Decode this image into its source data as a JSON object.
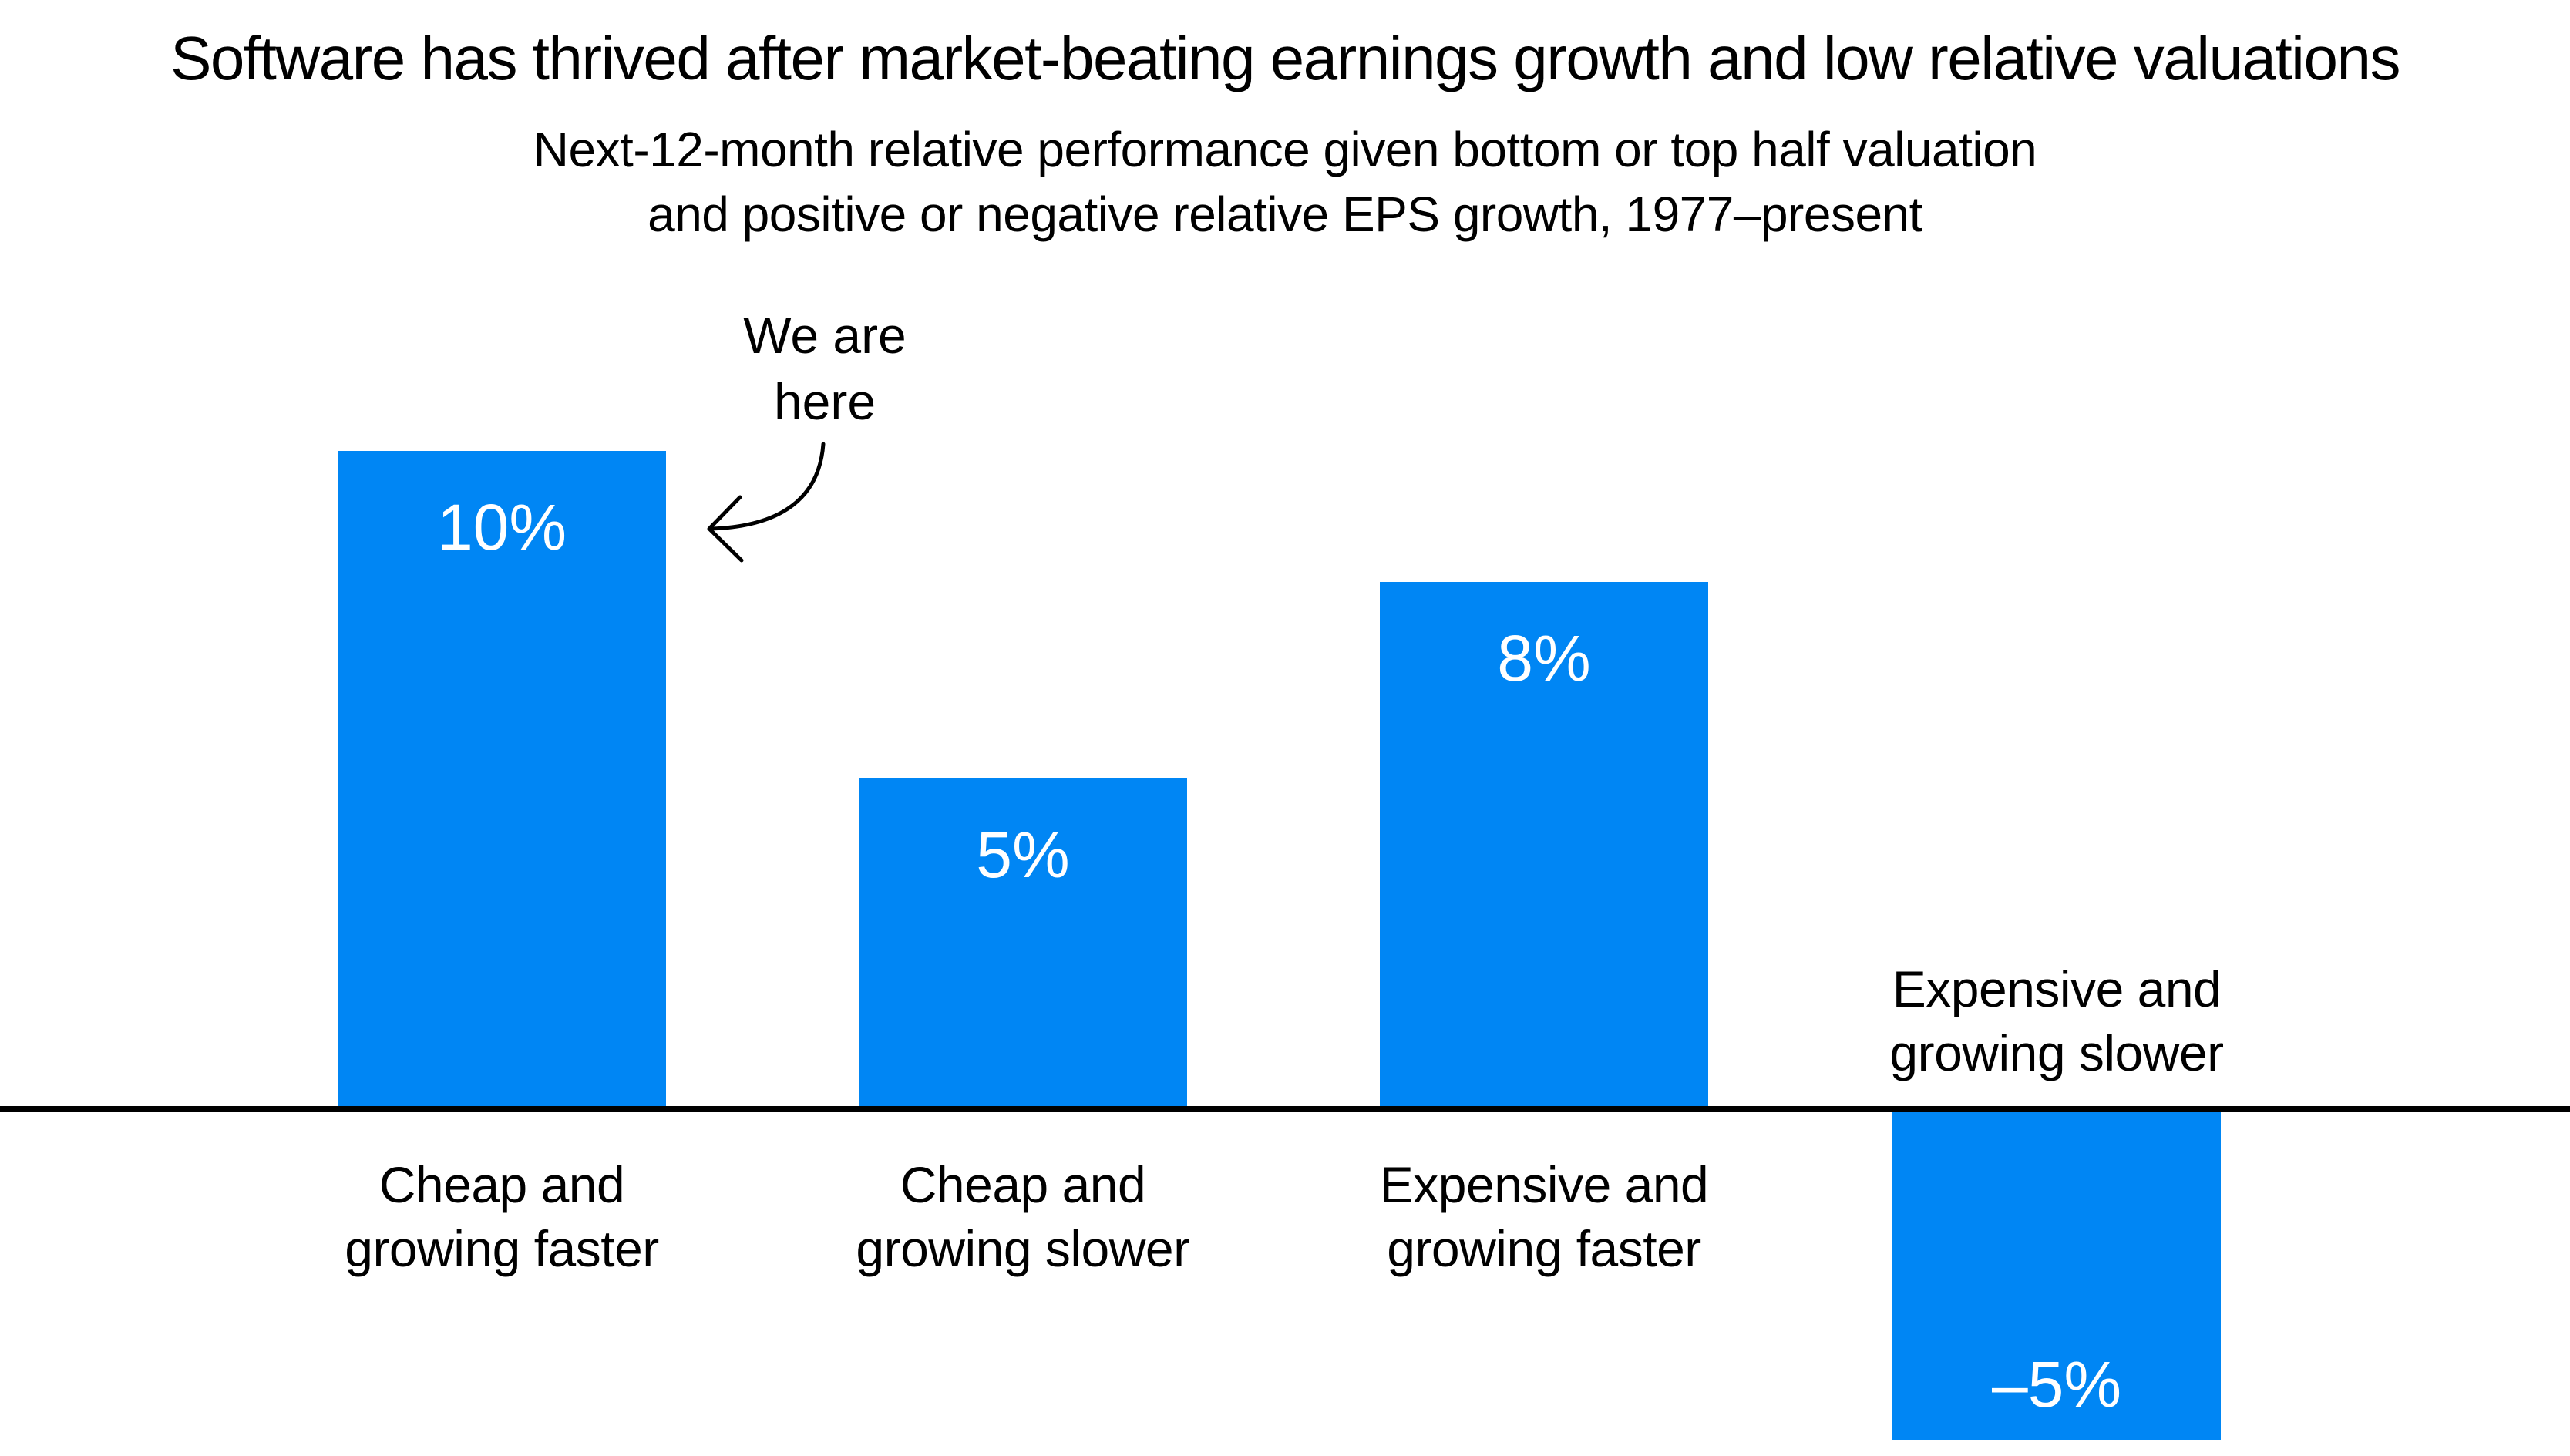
{
  "title": "Software has thrived after market-beating earnings growth and low relative valuations",
  "subtitle": {
    "line1": "Next-12-month relative performance given bottom or top half valuation",
    "line2": "and positive or negative relative EPS growth, 1977–present"
  },
  "annotation": {
    "line1": "We are",
    "line2": "here"
  },
  "colors": {
    "bar": "#0086F4",
    "text": "#000000",
    "value_label": "#FFFFFF",
    "axis": "#000000",
    "background": "#FFFFFF"
  },
  "chart_data": {
    "type": "bar",
    "title": "Software has thrived after market-beating earnings growth and low relative valuations",
    "subtitle": "Next-12-month relative performance given bottom or top half valuation and positive or negative relative EPS growth, 1977–present",
    "categories": [
      "Cheap and growing faster",
      "Cheap and growing slower",
      "Expensive and growing faster",
      "Expensive and growing slower"
    ],
    "values": [
      10,
      5,
      8,
      -5
    ],
    "unit": "%",
    "baseline_value": 0,
    "grid": false,
    "legend": false,
    "annotation_text": "We are here",
    "annotation_target": "Cheap and growing faster",
    "bars": [
      {
        "category_line1": "Cheap and",
        "category_line2": "growing faster",
        "value": 10,
        "value_label": "10%"
      },
      {
        "category_line1": "Cheap and",
        "category_line2": "growing slower",
        "value": 5,
        "value_label": "5%"
      },
      {
        "category_line1": "Expensive and",
        "category_line2": "growing faster",
        "value": 8,
        "value_label": "8%"
      },
      {
        "category_line1": "Expensive and",
        "category_line2": "growing slower",
        "value": -5,
        "value_label": "–5%"
      }
    ]
  }
}
